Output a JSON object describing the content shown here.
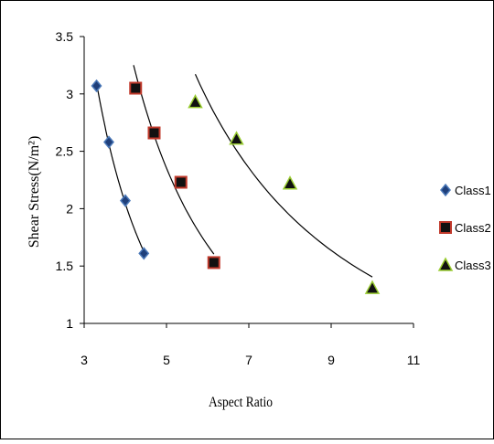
{
  "chart_data": {
    "type": "scatter",
    "xlabel": "Aspect Ratio",
    "ylabel": "Shear  Stress(N/m²)",
    "xlim": [
      3,
      11
    ],
    "ylim": [
      1,
      3.5
    ],
    "x_ticks": [
      "3",
      "5",
      "7",
      "9",
      "11"
    ],
    "y_ticks": [
      "1",
      "1.5",
      "2",
      "2.5",
      "3",
      "3.5"
    ],
    "grid": false,
    "legend_position": "right",
    "series": [
      {
        "name": "Class1",
        "marker": "diamond",
        "color": "#1f3f7a",
        "edge_color": "#4a78b8",
        "x": [
          3.3,
          3.6,
          4.0,
          4.45
        ],
        "y": [
          3.07,
          2.58,
          2.07,
          1.61
        ],
        "trendline": {
          "x": [
            3.3,
            3.6,
            4.0,
            4.45
          ],
          "y": [
            3.07,
            2.58,
            2.07,
            1.61
          ]
        }
      },
      {
        "name": "Class2",
        "marker": "square",
        "color": "#111111",
        "edge_color": "#c0392b",
        "x": [
          4.25,
          4.7,
          5.35,
          6.15
        ],
        "y": [
          3.05,
          2.66,
          2.23,
          1.53
        ],
        "trendline": {
          "x": [
            4.2,
            4.7,
            5.35,
            6.15
          ],
          "y": [
            3.15,
            2.66,
            2.23,
            1.53
          ]
        }
      },
      {
        "name": "Class3",
        "marker": "triangle",
        "color": "#111111",
        "edge_color": "#9acd32",
        "x": [
          5.7,
          6.7,
          8.0,
          10.0
        ],
        "y": [
          2.93,
          2.61,
          2.22,
          1.31
        ],
        "trendline": {
          "x": [
            5.7,
            6.7,
            8.0,
            10.0
          ],
          "y": [
            3.08,
            2.57,
            2.0,
            1.37
          ]
        }
      }
    ]
  }
}
